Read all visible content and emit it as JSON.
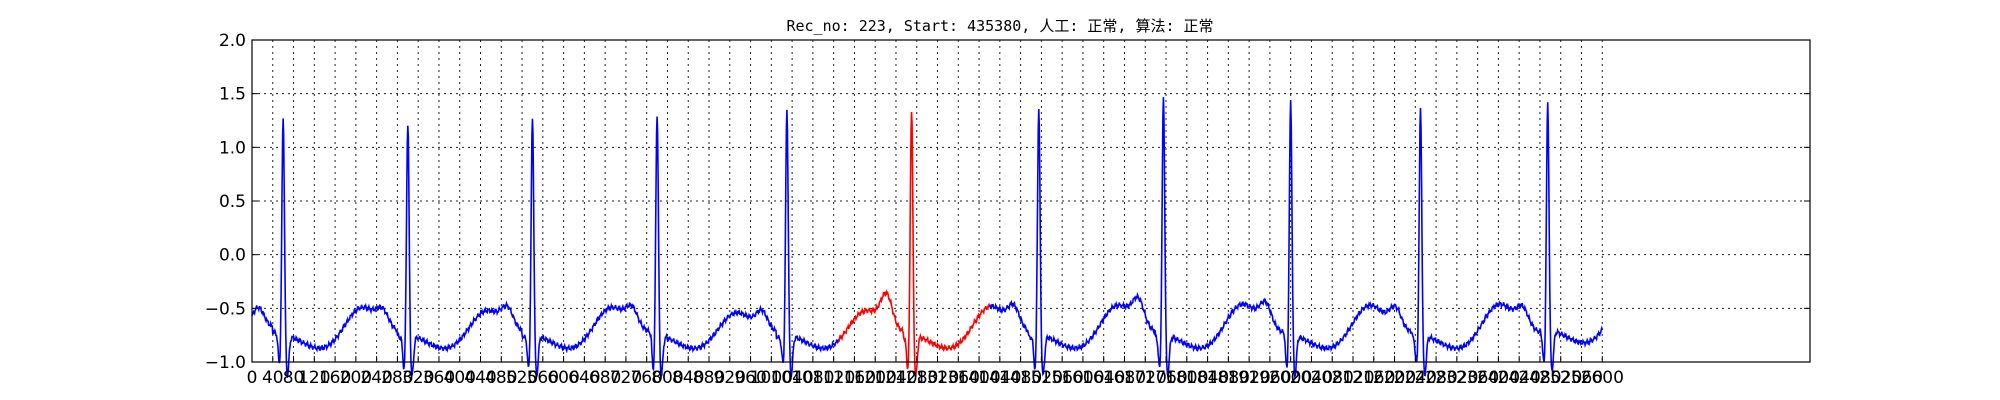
{
  "chart_data": {
    "type": "line",
    "title": "Rec_no: 223, Start: 435380, 人工: 正常, 算法: 正常",
    "xlabel": "",
    "ylabel": "",
    "xlim": [
      0,
      3000
    ],
    "ylim": [
      -1.0,
      2.0
    ],
    "grid": true,
    "x_tick_labels": [
      "0",
      "40",
      "80",
      "120",
      "160",
      "200",
      "240",
      "280",
      "320",
      "360",
      "400",
      "440",
      "480",
      "520",
      "560",
      "600",
      "640",
      "680",
      "720",
      "760",
      "800",
      "840",
      "880",
      "920",
      "960",
      "1000",
      "1040",
      "1080",
      "1120",
      "1160",
      "1200",
      "1240",
      "1280",
      "1320",
      "1360",
      "1400",
      "1440",
      "1480",
      "1520",
      "1560",
      "1600",
      "1640",
      "1680",
      "1720",
      "1760",
      "1800",
      "1840",
      "1880",
      "1920",
      "1960",
      "2000",
      "2040",
      "2080",
      "2120",
      "2160",
      "2200",
      "2240",
      "2280",
      "2320",
      "2360",
      "2400",
      "2440",
      "2480",
      "2520",
      "2560",
      "2600"
    ],
    "y_ticks": [
      -1.0,
      -0.5,
      0.0,
      0.5,
      1.0,
      1.5,
      2.0
    ],
    "y_tick_labels": [
      "−1.0",
      "−0.5",
      "0.0",
      "0.5",
      "1.0",
      "1.5",
      "2.0"
    ],
    "series": [
      {
        "color": "#0000ff",
        "beats": [
          [
            60,
            1.42,
            0.18,
            0.25
          ],
          [
            300,
            1.4,
            0.13,
            0.22
          ],
          [
            540,
            1.45,
            0.16,
            0.25
          ],
          [
            780,
            1.49,
            0.15,
            0.2
          ],
          [
            1030,
            1.49,
            0.16,
            0.22
          ],
          [
            1515,
            1.5,
            0.18,
            0.27
          ],
          [
            1755,
            1.64,
            0.22,
            0.28
          ],
          [
            2000,
            1.57,
            0.2,
            0.27
          ],
          [
            2250,
            1.5,
            0.18,
            0.28
          ],
          [
            2495,
            1.49,
            0.16,
            0.27
          ]
        ]
      },
      {
        "color": "#ff0000",
        "x_range": [
          1130,
          1420
        ],
        "beats": [
          [
            1270,
            1.53,
            0.28,
            0.26
          ]
        ]
      }
    ],
    "baseline": -0.62,
    "signal_end_x": 2600
  }
}
